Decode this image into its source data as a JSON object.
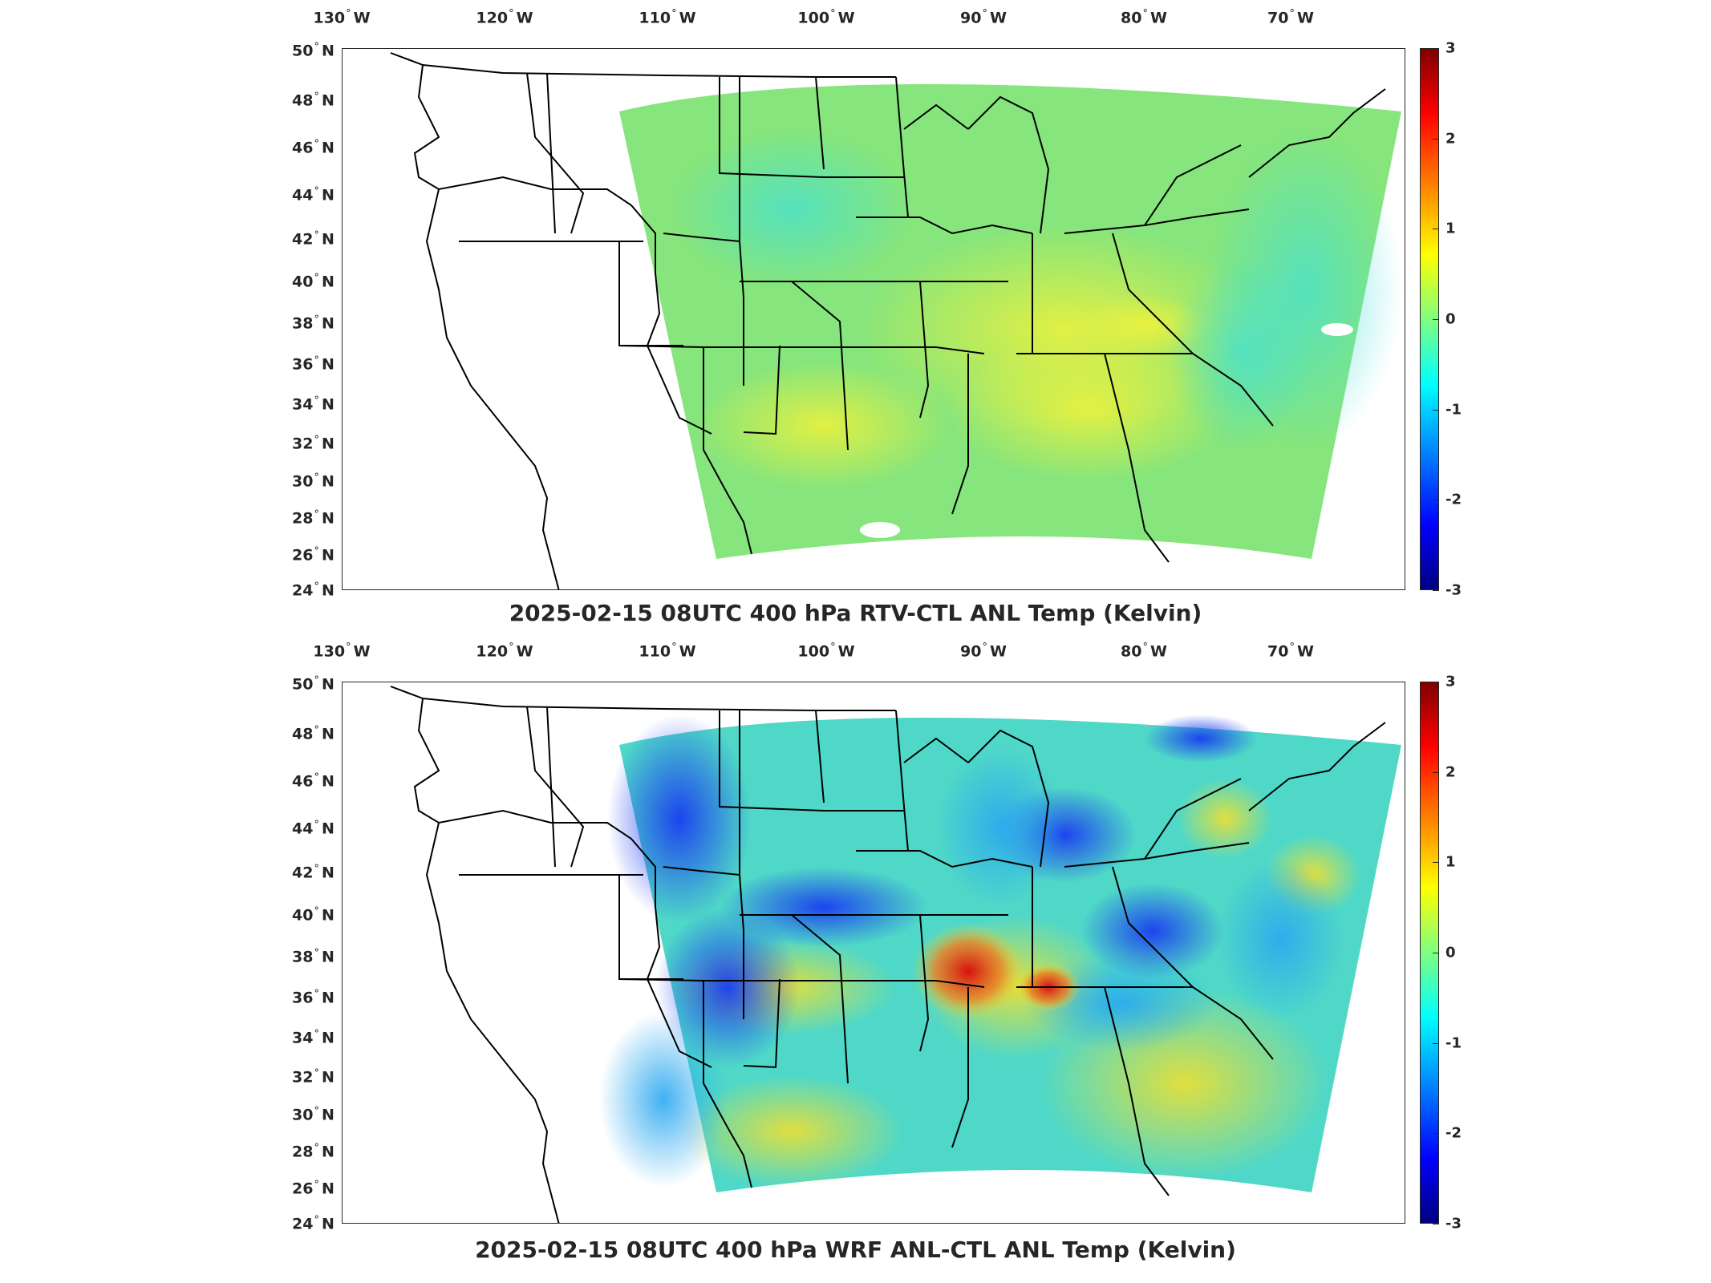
{
  "longitude_labels": [
    "130",
    "120",
    "110",
    "100",
    "90",
    "80",
    "70"
  ],
  "longitude_hemisphere": "W",
  "latitude_labels": [
    "50",
    "48",
    "46",
    "44",
    "42",
    "40",
    "38",
    "36",
    "34",
    "32",
    "30",
    "28",
    "26",
    "24"
  ],
  "latitude_hemisphere": "N",
  "colorbar": {
    "ticks": [
      "3",
      "2",
      "1",
      "0",
      "-1",
      "-2",
      "-3"
    ],
    "range": [
      -3,
      3
    ],
    "colormap": "jet"
  },
  "panels": [
    {
      "title": "2025-02-15 08UTC 400 hPa RTV-CTL ANL Temp (Kelvin)",
      "field_character": "near-zero, mostly green with yellow patches over southeast and Ohio valley",
      "dominant_color": "#7fe67f"
    },
    {
      "title": "2025-02-15 08UTC 400 hPa WRF ANL-CTL ANL Temp (Kelvin)",
      "field_character": "strong negative (blue) anomalies over Rockies, central plains and Great Lakes; positive (red) over mid-Mississippi valley",
      "dominant_color": "#3fcfcf"
    }
  ]
}
